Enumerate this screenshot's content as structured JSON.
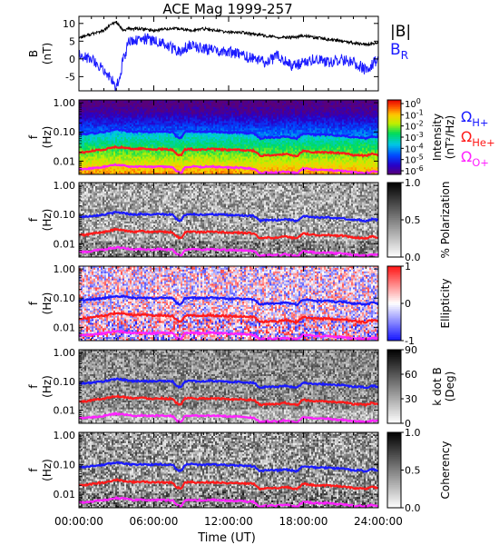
{
  "chart_data": [
    {
      "type": "line",
      "title": "ACE Mag 1999-257",
      "ylabel_main": "B",
      "ylabel_unit": "(nT)",
      "ylim": [
        -9,
        12
      ],
      "yticks": [
        10,
        5,
        0,
        -5
      ],
      "legend": [
        {
          "label": "|B|",
          "color": "#000000"
        },
        {
          "label": "B",
          "sub": "R",
          "color": "#1a1aff"
        }
      ],
      "series": [
        {
          "name": "|B|",
          "color": "#000000",
          "x": [
            0,
            1,
            2,
            2.5,
            3,
            3.5,
            4,
            5,
            6,
            7,
            8,
            9,
            10,
            11,
            12,
            13,
            14,
            15,
            16,
            17,
            18,
            19,
            20,
            21,
            22,
            23,
            24
          ],
          "values": [
            6,
            7,
            8,
            9.5,
            10.5,
            8,
            8.5,
            8.5,
            8,
            8.5,
            8.5,
            8,
            8.5,
            8,
            7.5,
            7.5,
            7,
            6.5,
            6,
            6,
            6.5,
            6,
            5.5,
            5,
            4.5,
            4,
            4.5
          ]
        },
        {
          "name": "B_R",
          "color": "#1a1aff",
          "x": [
            0,
            1,
            2,
            2.5,
            3,
            3.2,
            3.5,
            4,
            5,
            6,
            7,
            8,
            9,
            10,
            11,
            12,
            13,
            14,
            15,
            16,
            17,
            18,
            19,
            20,
            21,
            22,
            23,
            24
          ],
          "values": [
            1,
            0,
            -3,
            -5,
            -8,
            -6,
            -1,
            5,
            6,
            5,
            4,
            2,
            4,
            3,
            2,
            2,
            1,
            0,
            -1,
            1,
            -2,
            -1,
            0,
            -1,
            0,
            -1,
            -3,
            0
          ]
        }
      ]
    },
    {
      "type": "heatmap",
      "name": "intensity",
      "ylabel_main": "f",
      "ylabel_unit": "(Hz)",
      "colorbar": {
        "label": "Intensity",
        "unit": "(nT²/Hz)",
        "scale": "log",
        "ticks": [
          {
            "base": "10",
            "exp": "0"
          },
          {
            "base": "10",
            "exp": "-1"
          },
          {
            "base": "10",
            "exp": "-2"
          },
          {
            "base": "10",
            "exp": "-3"
          },
          {
            "base": "10",
            "exp": "-4"
          },
          {
            "base": "10",
            "exp": "-5"
          },
          {
            "base": "10",
            "exp": "-6"
          }
        ]
      },
      "legend": [
        {
          "symbol": "Ω",
          "sub": "H+",
          "color": "#1a1aff"
        },
        {
          "symbol": "Ω",
          "sub": "He+",
          "color": "#ff1a1a"
        },
        {
          "symbol": "Ω",
          "sub": "O+",
          "color": "#ff22ff"
        }
      ]
    },
    {
      "type": "heatmap",
      "name": "polarization",
      "ylabel_main": "f",
      "ylabel_unit": "(Hz)",
      "colorbar": {
        "label": "% Polarization",
        "ticks": [
          "1.0",
          "0.5",
          "0.0"
        ]
      }
    },
    {
      "type": "heatmap",
      "name": "ellipticity",
      "ylabel_main": "f",
      "ylabel_unit": "(Hz)",
      "colorbar": {
        "label": "Ellipticity",
        "ticks": [
          "1",
          "0",
          "-1"
        ]
      }
    },
    {
      "type": "heatmap",
      "name": "kdotb",
      "ylabel_main": "f",
      "ylabel_unit": "(Hz)",
      "colorbar": {
        "label": "k dot B",
        "unit": "(Deg)",
        "ticks": [
          "90",
          "60",
          "30",
          "0"
        ]
      }
    },
    {
      "type": "heatmap",
      "name": "coherency",
      "ylabel_main": "f",
      "ylabel_unit": "(Hz)",
      "colorbar": {
        "label": "Coherency",
        "ticks": [
          "1.0",
          "0.5",
          "0.0"
        ]
      }
    }
  ],
  "shared": {
    "freq_axis": {
      "scale": "log",
      "ylim": [
        0.0035,
        1.25
      ],
      "ticks": [
        "1.00",
        "0.10",
        "0.01"
      ]
    },
    "time_axis": {
      "xlim": [
        0,
        24
      ],
      "ticks": [
        "00:00:00",
        "06:00:00",
        "12:00:00",
        "18:00:00",
        "24:00:00"
      ],
      "label": "Time (UT)"
    },
    "gyro_lines": {
      "x": [
        0,
        0.5,
        1,
        1.5,
        2,
        2.5,
        3,
        3.5,
        4,
        4.5,
        5,
        5.5,
        6,
        6.5,
        7,
        7.5,
        7.8,
        8.2,
        8.5,
        9,
        9.5,
        10,
        10.5,
        11,
        11.5,
        12,
        12.5,
        13,
        13.5,
        14,
        14.5,
        15,
        15.5,
        16,
        16.5,
        17,
        17.5,
        18,
        18.5,
        19,
        19.5,
        20,
        20.5,
        21,
        21.5,
        22,
        22.5,
        23,
        23.5,
        24
      ],
      "H+": [
        0.085,
        0.085,
        0.09,
        0.095,
        0.1,
        0.11,
        0.12,
        0.115,
        0.105,
        0.1,
        0.105,
        0.1,
        0.1,
        0.105,
        0.1,
        0.1,
        0.07,
        0.06,
        0.1,
        0.105,
        0.1,
        0.1,
        0.105,
        0.1,
        0.1,
        0.095,
        0.095,
        0.095,
        0.09,
        0.09,
        0.06,
        0.065,
        0.065,
        0.065,
        0.07,
        0.065,
        0.06,
        0.09,
        0.085,
        0.08,
        0.08,
        0.08,
        0.075,
        0.075,
        0.07,
        0.065,
        0.065,
        0.06,
        0.07,
        0.065
      ],
      "He+": [
        0.02,
        0.02,
        0.022,
        0.024,
        0.025,
        0.028,
        0.031,
        0.029,
        0.027,
        0.026,
        0.027,
        0.026,
        0.025,
        0.026,
        0.025,
        0.025,
        0.018,
        0.015,
        0.025,
        0.026,
        0.025,
        0.025,
        0.026,
        0.025,
        0.025,
        0.024,
        0.024,
        0.024,
        0.023,
        0.023,
        0.015,
        0.016,
        0.016,
        0.016,
        0.018,
        0.016,
        0.015,
        0.023,
        0.021,
        0.02,
        0.02,
        0.02,
        0.019,
        0.019,
        0.018,
        0.016,
        0.016,
        0.015,
        0.018,
        0.016
      ],
      "O+": [
        0.0053,
        0.0053,
        0.0056,
        0.006,
        0.0063,
        0.0069,
        0.0075,
        0.0072,
        0.0066,
        0.0063,
        0.0066,
        0.0063,
        0.0063,
        0.0066,
        0.0063,
        0.0063,
        0.0044,
        0.0038,
        0.0063,
        0.0066,
        0.0063,
        0.0063,
        0.0066,
        0.0063,
        0.0063,
        0.006,
        0.006,
        0.006,
        0.0056,
        0.0056,
        0.0038,
        0.0041,
        0.0041,
        0.0041,
        0.0044,
        0.0041,
        0.0038,
        0.0056,
        0.0053,
        0.005,
        0.005,
        0.005,
        0.0047,
        0.0047,
        0.0044,
        0.0041,
        0.0041,
        0.0038,
        0.0044,
        0.0041
      ],
      "colors": {
        "H+": "#1a1aff",
        "He+": "#ff1a1a",
        "O+": "#ff22ff"
      }
    }
  }
}
